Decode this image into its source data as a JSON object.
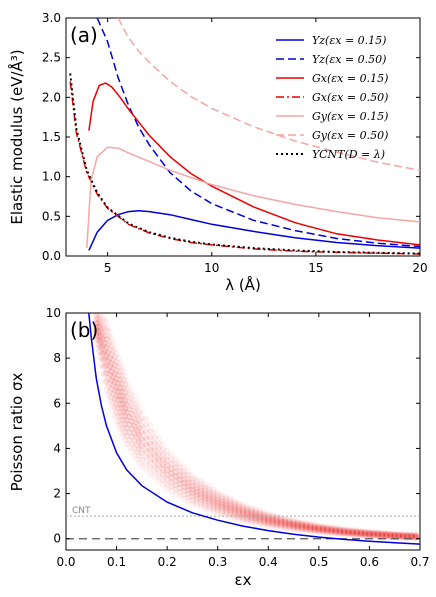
{
  "chart_data": [
    {
      "panel": "(a)",
      "type": "line",
      "xlabel": "λ (Å)",
      "ylabel": "Elastic modulus (eV/Å³)",
      "xlim": [
        3,
        20
      ],
      "ylim": [
        0,
        3.0
      ],
      "xticks": [
        "5",
        "10",
        "15",
        "20"
      ],
      "yticks": [
        "0.0",
        "0.5",
        "1.0",
        "1.5",
        "2.0",
        "2.5",
        "3.0"
      ],
      "legend_position": "top-right",
      "series": [
        {
          "name": "Yz(εx = 0.15)",
          "color": "#0000dd",
          "style": "solid",
          "x": [
            4.1,
            4.5,
            5,
            5.5,
            6,
            6.5,
            7,
            8,
            9,
            10,
            12,
            14,
            16,
            18,
            20
          ],
          "y": [
            0.07,
            0.3,
            0.45,
            0.52,
            0.56,
            0.57,
            0.56,
            0.52,
            0.46,
            0.4,
            0.31,
            0.23,
            0.17,
            0.13,
            0.1
          ]
        },
        {
          "name": "Yz(εx = 0.50)",
          "color": "#0000dd",
          "style": "dashed",
          "x": [
            4.5,
            5,
            5.5,
            6,
            6.5,
            7,
            8,
            9,
            10,
            12,
            14,
            16,
            18,
            20
          ],
          "y": [
            3.0,
            2.7,
            2.25,
            1.9,
            1.62,
            1.4,
            1.05,
            0.82,
            0.66,
            0.45,
            0.32,
            0.22,
            0.16,
            0.12
          ]
        },
        {
          "name": "Gx(εx = 0.15)",
          "color": "#ee0000",
          "style": "solid",
          "x": [
            4.1,
            4.3,
            4.6,
            4.9,
            5.2,
            5.6,
            6,
            7,
            8,
            9,
            10,
            12,
            14,
            16,
            18,
            20
          ],
          "y": [
            1.58,
            1.95,
            2.15,
            2.18,
            2.13,
            2.0,
            1.85,
            1.52,
            1.25,
            1.04,
            0.88,
            0.62,
            0.42,
            0.28,
            0.2,
            0.14
          ]
        },
        {
          "name": "Gx(εx = 0.50)",
          "color": "#ee0000",
          "style": "dashdot",
          "x": [
            3.2,
            3.5,
            4,
            4.5,
            5,
            6,
            7,
            8,
            9,
            10,
            12,
            14,
            16,
            18,
            20
          ],
          "y": [
            2.2,
            1.55,
            1.05,
            0.78,
            0.6,
            0.4,
            0.29,
            0.22,
            0.17,
            0.14,
            0.09,
            0.06,
            0.045,
            0.035,
            0.025
          ]
        },
        {
          "name": "Gy(εx = 0.15)",
          "color": "#f4a6a6",
          "style": "solid",
          "x": [
            4.0,
            4.2,
            4.5,
            5,
            5.5,
            6,
            7,
            8,
            9,
            10,
            12,
            14,
            16,
            18,
            20
          ],
          "y": [
            0.1,
            0.95,
            1.25,
            1.37,
            1.36,
            1.3,
            1.19,
            1.08,
            0.99,
            0.9,
            0.76,
            0.65,
            0.56,
            0.48,
            0.43
          ]
        },
        {
          "name": "Gy(εx = 0.50)",
          "color": "#f4a6a6",
          "style": "dashed",
          "x": [
            5.5,
            6,
            6.5,
            7,
            8,
            9,
            10,
            12,
            14,
            16,
            18,
            20
          ],
          "y": [
            3.0,
            2.75,
            2.58,
            2.44,
            2.2,
            2.01,
            1.86,
            1.63,
            1.45,
            1.31,
            1.18,
            1.08
          ]
        },
        {
          "name": "YCNT(D = λ)",
          "color": "#000000",
          "style": "dotted",
          "x": [
            3.2,
            3.5,
            4,
            4.5,
            5,
            6,
            7,
            8,
            9,
            10,
            12,
            14,
            16,
            18,
            20
          ],
          "y": [
            2.3,
            1.6,
            1.08,
            0.8,
            0.61,
            0.41,
            0.3,
            0.23,
            0.18,
            0.145,
            0.1,
            0.07,
            0.05,
            0.04,
            0.03
          ]
        }
      ]
    },
    {
      "panel": "(b)",
      "type": "scatter",
      "xlabel": "εx",
      "ylabel": "Poisson ratio σx",
      "xlim": [
        0.0,
        0.7
      ],
      "ylim": [
        -0.5,
        10
      ],
      "xticks": [
        "0.0",
        "0.1",
        "0.2",
        "0.3",
        "0.4",
        "0.5",
        "0.6",
        "0.7"
      ],
      "yticks": [
        "0",
        "2",
        "4",
        "6",
        "8",
        "10"
      ],
      "annotation": "CNT",
      "cnt_reference_y": 1.0,
      "zero_reference_y": 0.0,
      "curve": {
        "color": "#0000dd",
        "x": [
          0.045,
          0.05,
          0.06,
          0.07,
          0.08,
          0.1,
          0.12,
          0.15,
          0.2,
          0.25,
          0.3,
          0.35,
          0.4,
          0.45,
          0.5,
          0.55,
          0.6,
          0.65,
          0.7
        ],
        "y": [
          10.0,
          8.9,
          7.1,
          5.9,
          5.0,
          3.8,
          3.05,
          2.35,
          1.62,
          1.15,
          0.82,
          0.56,
          0.36,
          0.2,
          0.07,
          -0.03,
          -0.11,
          -0.18,
          -0.24
        ]
      },
      "scatter_band": {
        "color": "#e83030",
        "x": [
          0.06,
          0.08,
          0.1,
          0.12,
          0.15,
          0.2,
          0.25,
          0.3,
          0.35,
          0.4,
          0.45,
          0.5,
          0.55,
          0.6,
          0.65,
          0.7
        ],
        "y_low": [
          8.8,
          6.6,
          5.2,
          4.2,
          3.2,
          2.2,
          1.55,
          1.12,
          0.8,
          0.58,
          0.42,
          0.3,
          0.2,
          0.12,
          0.06,
          0.02
        ],
        "y_high": [
          10.0,
          9.6,
          8.2,
          7.0,
          5.6,
          3.9,
          2.8,
          2.05,
          1.5,
          1.1,
          0.8,
          0.58,
          0.42,
          0.3,
          0.22,
          0.16
        ]
      }
    }
  ]
}
